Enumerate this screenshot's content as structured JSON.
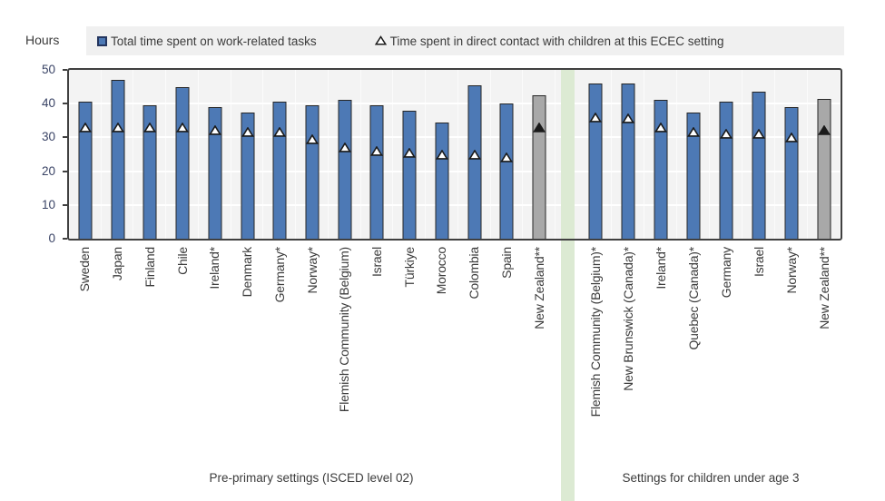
{
  "chart_data": {
    "type": "bar",
    "title": "",
    "ylabel": "Hours",
    "xlabel": "",
    "ylim": [
      0,
      50
    ],
    "yticks": [
      0,
      10,
      20,
      30,
      40,
      50
    ],
    "grid": "white horizontal lines every 10 and faint white vertical lines per category on light-grey plot background",
    "legend_position": "top",
    "legend": [
      {
        "label": "Total time spent on work-related tasks",
        "marker": "square",
        "series": "total"
      },
      {
        "label": "Time spent in direct contact with children at this ECEC setting",
        "marker": "triangle",
        "series": "contact"
      }
    ],
    "groups": [
      {
        "caption": "Pre-primary settings (ISCED level 02)",
        "items": [
          {
            "label": "Sweden",
            "total": 40.5,
            "contact": 33,
            "highlight": false
          },
          {
            "label": "Japan",
            "total": 47,
            "contact": 33,
            "highlight": false
          },
          {
            "label": "Finland",
            "total": 39.5,
            "contact": 33,
            "highlight": false
          },
          {
            "label": "Chile",
            "total": 45,
            "contact": 33,
            "highlight": false
          },
          {
            "label": "Ireland*",
            "total": 39,
            "contact": 32,
            "highlight": false
          },
          {
            "label": "Denmark",
            "total": 37.5,
            "contact": 31.5,
            "highlight": false
          },
          {
            "label": "Germany*",
            "total": 40.5,
            "contact": 31.5,
            "highlight": false
          },
          {
            "label": "Norway*",
            "total": 39.5,
            "contact": 29.5,
            "highlight": false
          },
          {
            "label": "Flemish Community (Belgium)",
            "total": 41,
            "contact": 27,
            "highlight": false
          },
          {
            "label": "Israel",
            "total": 39.5,
            "contact": 26,
            "highlight": false
          },
          {
            "label": "Türkiye",
            "total": 38,
            "contact": 25.5,
            "highlight": false
          },
          {
            "label": "Morocco",
            "total": 34.5,
            "contact": 25,
            "highlight": false
          },
          {
            "label": "Colombia",
            "total": 45.5,
            "contact": 25,
            "highlight": false
          },
          {
            "label": "Spain",
            "total": 40,
            "contact": 24,
            "highlight": false
          },
          {
            "label": "New Zealand**",
            "total": 42.5,
            "contact": 33,
            "highlight": true
          }
        ]
      },
      {
        "caption": "Settings for children under age 3",
        "items": [
          {
            "label": "Flemish Community (Belgium)*",
            "total": 46,
            "contact": 36,
            "highlight": false
          },
          {
            "label": "New Brunswick (Canada)*",
            "total": 46,
            "contact": 35.5,
            "highlight": false
          },
          {
            "label": "Ireland*",
            "total": 41,
            "contact": 33,
            "highlight": false
          },
          {
            "label": "Quebec (Canada)*",
            "total": 37.5,
            "contact": 31.5,
            "highlight": false
          },
          {
            "label": "Germany",
            "total": 40.5,
            "contact": 31,
            "highlight": false
          },
          {
            "label": "Israel",
            "total": 43.5,
            "contact": 31,
            "highlight": false
          },
          {
            "label": "Norway*",
            "total": 39,
            "contact": 30,
            "highlight": false
          },
          {
            "label": "New Zealand**",
            "total": 41.5,
            "contact": 32,
            "highlight": true
          }
        ]
      }
    ],
    "colors": {
      "bar_fill": "#4d79b5",
      "bar_border": "#262626",
      "highlight_bar_fill": "#a8a8a8",
      "marker_fill": "#ffffff",
      "highlight_marker_fill": "#1a1a1a",
      "marker_border": "#1a1a1a",
      "separator_band": "#dcead3",
      "plot_background": "#f3f3f3",
      "legend_background": "#f0f0f0",
      "axis_border": "#404040"
    }
  }
}
